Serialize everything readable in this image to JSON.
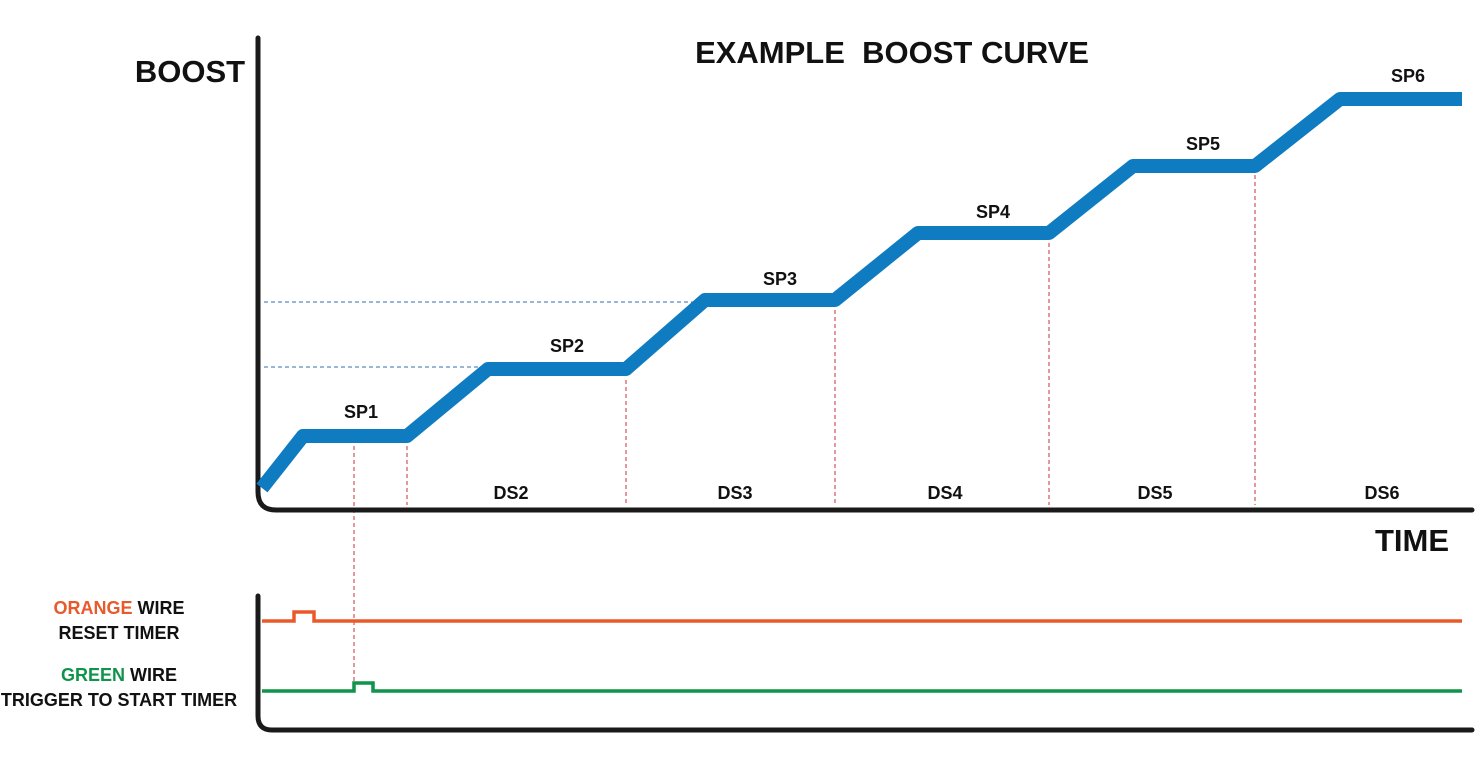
{
  "title": "EXAMPLE  BOOST CURVE",
  "y_axis_label": "BOOST",
  "x_axis_label": "TIME",
  "setpoints": [
    "SP1",
    "SP2",
    "SP3",
    "SP4",
    "SP5",
    "SP6"
  ],
  "durations": [
    "DS2",
    "DS3",
    "DS4",
    "DS5",
    "DS6"
  ],
  "orange_wire": {
    "color_word": "ORANGE",
    "wire_word": " WIRE",
    "description": "RESET TIMER"
  },
  "green_wire": {
    "color_word": "GREEN",
    "wire_word": " WIRE",
    "description": "TRIGGER TO START TIMER"
  },
  "colors": {
    "boost_curve": "#0f7bc0",
    "axis": "#1a1a1a",
    "guide_red": "#c8323a",
    "guide_blue": "#2f6fb0",
    "orange": "#e85a2b",
    "green": "#10934a"
  }
}
